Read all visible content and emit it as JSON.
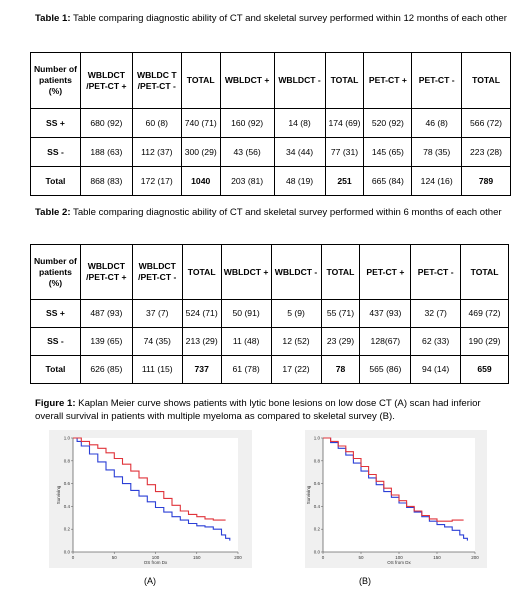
{
  "table1": {
    "caption_label": "Table 1:",
    "caption_text": " Table comparing diagnostic ability of CT and skeletal survey performed within 12 months of each other",
    "headers": [
      "Number of patients (%)",
      "WBLDCT /PET-CT +",
      "WBLDC T /PET-CT -",
      "TOTAL",
      "WBLDCT +",
      "WBLDCT -",
      "TOTAL",
      "PET-CT +",
      "PET-CT -",
      "TOTAL"
    ],
    "rows": [
      [
        "SS +",
        "680 (92)",
        "60 (8)",
        "740 (71)",
        "160 (92)",
        "14 (8)",
        "174 (69)",
        "520 (92)",
        "46 (8)",
        "566 (72)"
      ],
      [
        "SS -",
        "188 (63)",
        "112 (37)",
        "300 (29)",
        "43 (56)",
        "34 (44)",
        "77 (31)",
        "145 (65)",
        "78 (35)",
        "223 (28)"
      ],
      [
        "Total",
        "868 (83)",
        "172 (17)",
        "1040",
        "203 (81)",
        "48 (19)",
        "251",
        "665 (84)",
        "124 (16)",
        "789"
      ]
    ]
  },
  "table2": {
    "caption_label": "Table 2:",
    "caption_text": " Table comparing diagnostic ability of CT and skeletal survey performed within 6 months of each other",
    "headers": [
      "Number of patients (%)",
      "WBLDCT /PET-CT +",
      "WBLDCT /PET-CT -",
      "TOTAL",
      "WBLDCT +",
      "WBLDCT -",
      "TOTAL",
      "PET-CT +",
      "PET-CT -",
      "TOTAL"
    ],
    "rows": [
      [
        "SS +",
        "487 (93)",
        "37 (7)",
        "524 (71)",
        "50 (91)",
        "5 (9)",
        "55 (71)",
        "437 (93)",
        "32 (7)",
        "469 (72)"
      ],
      [
        "SS -",
        "139 (65)",
        "74 (35)",
        "213 (29)",
        "11 (48)",
        "12 (52)",
        "23 (29)",
        "128(67)",
        "62 (33)",
        "190 (29)"
      ],
      [
        "Total",
        "626 (85)",
        "111 (15)",
        "737",
        "61 (78)",
        "17 (22)",
        "78",
        "565 (86)",
        "94 (14)",
        "659"
      ]
    ]
  },
  "figure1": {
    "caption_label": "Figure 1:",
    "caption_text": " Kaplan Meier curve shows patients with lytic bone lesions on low dose CT (A) scan had inferior overall survival in patients with multiple myeloma  as compared to skeletal survey (B)."
  },
  "chart_data": [
    {
      "type": "line",
      "panel_label": "(A)",
      "xlabel": "OS from Dx",
      "ylabel": "Surviving",
      "xlim": [
        0,
        200
      ],
      "ylim": [
        0,
        1
      ],
      "xticks": [
        0,
        50,
        100,
        150,
        200
      ],
      "yticks": [
        0.0,
        0.2,
        0.4,
        0.6,
        0.8,
        1.0
      ],
      "grid": false,
      "colors": {
        "blue": "#2b3fd6",
        "red": "#e0333a"
      },
      "series": [
        {
          "color": "blue",
          "x": [
            0,
            5,
            10,
            20,
            30,
            40,
            50,
            60,
            70,
            80,
            90,
            100,
            110,
            120,
            130,
            140,
            150,
            160,
            170,
            180,
            185,
            190
          ],
          "y": [
            1.0,
            0.97,
            0.93,
            0.86,
            0.79,
            0.72,
            0.66,
            0.6,
            0.54,
            0.49,
            0.44,
            0.39,
            0.35,
            0.31,
            0.28,
            0.25,
            0.23,
            0.22,
            0.2,
            0.15,
            0.12,
            0.1
          ]
        },
        {
          "color": "red",
          "x": [
            0,
            10,
            20,
            30,
            40,
            50,
            60,
            70,
            80,
            90,
            100,
            110,
            120,
            130,
            140,
            150,
            160,
            170,
            180,
            185
          ],
          "y": [
            1.0,
            0.97,
            0.94,
            0.91,
            0.87,
            0.82,
            0.77,
            0.71,
            0.65,
            0.59,
            0.53,
            0.47,
            0.41,
            0.36,
            0.33,
            0.31,
            0.29,
            0.28,
            0.28,
            0.28
          ]
        }
      ]
    },
    {
      "type": "line",
      "panel_label": "(B)",
      "xlabel": "OS from Dx",
      "ylabel": "Surviving",
      "xlim": [
        0,
        200
      ],
      "ylim": [
        0,
        1
      ],
      "xticks": [
        0,
        50,
        100,
        150,
        200
      ],
      "yticks": [
        0.0,
        0.2,
        0.4,
        0.6,
        0.8,
        1.0
      ],
      "grid": false,
      "colors": {
        "blue": "#2b3fd6",
        "red": "#e0333a"
      },
      "series": [
        {
          "color": "blue",
          "x": [
            0,
            10,
            20,
            30,
            40,
            50,
            60,
            70,
            80,
            90,
            100,
            110,
            120,
            130,
            140,
            150,
            160,
            170,
            180,
            185,
            190
          ],
          "y": [
            1.0,
            0.96,
            0.91,
            0.85,
            0.78,
            0.71,
            0.65,
            0.59,
            0.53,
            0.48,
            0.43,
            0.39,
            0.35,
            0.31,
            0.27,
            0.24,
            0.22,
            0.19,
            0.15,
            0.12,
            0.1
          ]
        },
        {
          "color": "red",
          "x": [
            0,
            10,
            20,
            30,
            40,
            50,
            60,
            70,
            80,
            90,
            100,
            110,
            120,
            130,
            140,
            150,
            160,
            170,
            180,
            185
          ],
          "y": [
            1.0,
            0.97,
            0.93,
            0.88,
            0.82,
            0.75,
            0.68,
            0.62,
            0.56,
            0.5,
            0.45,
            0.4,
            0.36,
            0.32,
            0.29,
            0.27,
            0.27,
            0.28,
            0.28,
            0.28
          ]
        }
      ]
    }
  ]
}
